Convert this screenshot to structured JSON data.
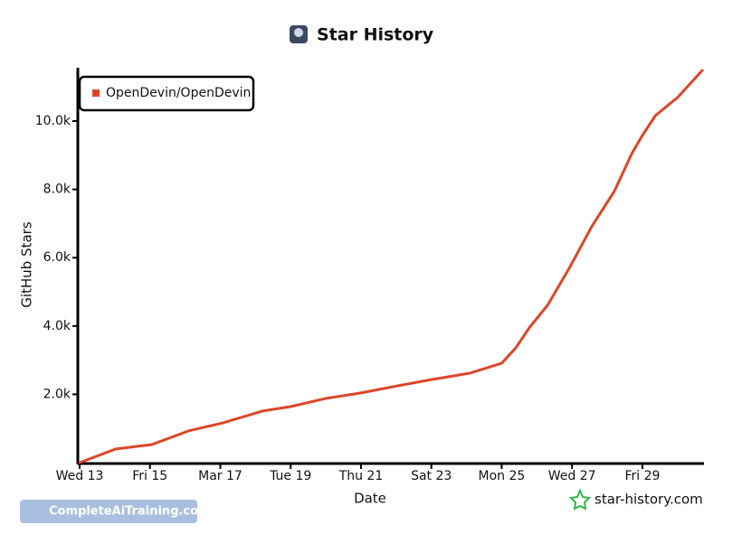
{
  "chart_data": {
    "type": "line",
    "title": "Star History",
    "x_label": "Date",
    "y_label": "GitHub Stars",
    "x": [
      13,
      14.03,
      15.06,
      16.1,
      17.06,
      18.2,
      19.0,
      20.0,
      21.0,
      22.05,
      23.0,
      24.1,
      25.0,
      25.4,
      25.8,
      26.3,
      26.93,
      27.57,
      28.2,
      28.7,
      29.0,
      29.37,
      30.0,
      30.7
    ],
    "series": [
      {
        "name": "OpenDevin/OpenDevin",
        "color": "#dd4528",
        "values": [
          0,
          400,
          530,
          930,
          1160,
          1510,
          1640,
          1880,
          2040,
          2250,
          2430,
          2620,
          2910,
          3360,
          3970,
          4600,
          5710,
          6930,
          7940,
          9050,
          9580,
          10160,
          10690,
          11480
        ]
      }
    ],
    "xlim": [
      13,
      30.7
    ],
    "xticks": [
      {
        "value": 13,
        "label": "Wed 13"
      },
      {
        "value": 15,
        "label": "Fri 15"
      },
      {
        "value": 17,
        "label": "Mar 17"
      },
      {
        "value": 19,
        "label": "Tue 19"
      },
      {
        "value": 21,
        "label": "Thu 21"
      },
      {
        "value": 23,
        "label": "Sat 23"
      },
      {
        "value": 25,
        "label": "Mon 25"
      },
      {
        "value": 27,
        "label": "Wed 27"
      },
      {
        "value": 29,
        "label": "Fri 29"
      }
    ],
    "ylim": [
      0,
      11560
    ],
    "yticks": [
      {
        "value": 2000,
        "label": "2.0k"
      },
      {
        "value": 4000,
        "label": "4.0k"
      },
      {
        "value": 6000,
        "label": "6.0k"
      },
      {
        "value": 8000,
        "label": "8.0k"
      },
      {
        "value": 10000,
        "label": "10.0k"
      }
    ],
    "legend": "top-left"
  },
  "footer": {
    "brand": "star-history.com",
    "badge": "CompleteAiTraining.com"
  }
}
